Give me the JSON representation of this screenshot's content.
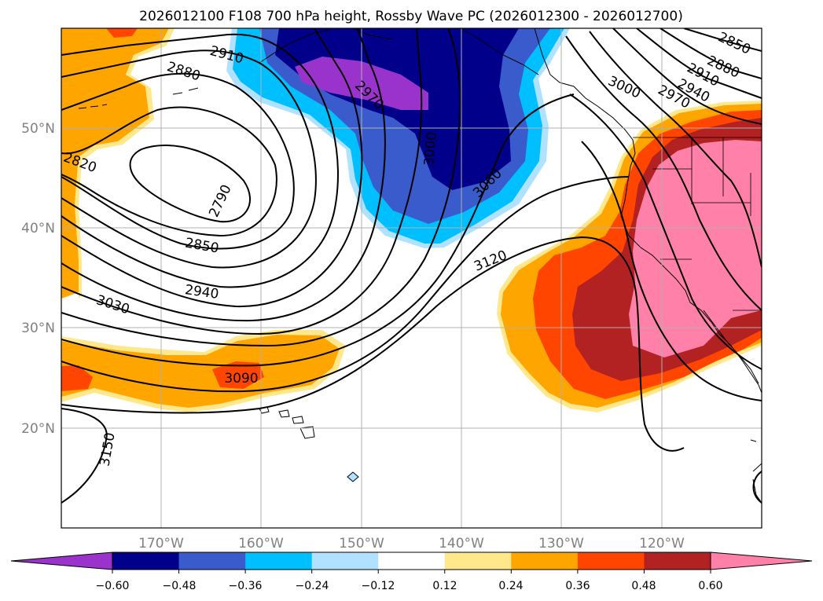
{
  "title": "2026012100 F108 700 hPa height, Rossby Wave PC (2026012300 - 2026012700)",
  "map": {
    "lat_labels": [
      "50°N",
      "40°N",
      "30°N",
      "20°N"
    ],
    "lon_labels": [
      "170°W",
      "160°W",
      "150°W",
      "140°W",
      "130°W",
      "120°W"
    ],
    "grid": true
  },
  "contours": {
    "color": "#000000",
    "labels": [
      "2910",
      "2880",
      "2970",
      "3000",
      "2850",
      "2880",
      "2910",
      "2940",
      "2970",
      "3000",
      "2820",
      "2790",
      "3000",
      "3060",
      "2850",
      "3120",
      "2940",
      "3030",
      "3090",
      "3150"
    ]
  },
  "colorbar": {
    "colors": [
      "#9933cc",
      "#00008b",
      "#3a5bcc",
      "#00bfff",
      "#b0e2ff",
      "#ffffff",
      "#ffe88c",
      "#ffa500",
      "#ff4500",
      "#b22222",
      "#ff80a8"
    ],
    "extend_min_color": "#9933cc",
    "extend_max_color": "#ff80a8",
    "tick_labels": [
      "−0.60",
      "−0.48",
      "−0.36",
      "−0.24",
      "−0.12",
      "0.12",
      "0.24",
      "0.36",
      "0.48",
      "0.60"
    ]
  }
}
